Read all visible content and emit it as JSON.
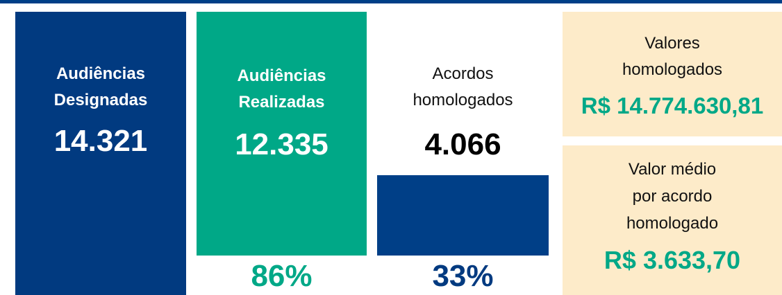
{
  "cards": [
    {
      "lines": [
        "Audiências",
        "Designadas"
      ],
      "value": "14.321"
    },
    {
      "lines": [
        "Audiências",
        "Realizadas"
      ],
      "value": "12.335",
      "percent": {
        "value": 86,
        "label": "86%"
      }
    },
    {
      "lines": [
        "Acordos",
        "homologados"
      ],
      "value": "4.066",
      "percent": {
        "value": 33,
        "label": "33%"
      }
    },
    {
      "lines": [
        "Valores",
        "homologados"
      ],
      "value": "R$ 14.774.630,81"
    },
    {
      "lines": [
        "Valor médio",
        "por acordo",
        "homologado"
      ],
      "value": "R$ 3.633,70"
    }
  ]
}
